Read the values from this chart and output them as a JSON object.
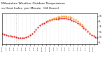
{
  "title_line1": "Milwaukee Weather Outdoor Temperature",
  "title_line2": "vs Heat Index  per Minute  (24 Hours)",
  "title_fontsize": 3.2,
  "bg_color": "#ffffff",
  "line1_color": "#dd0000",
  "line2_color": "#ff8800",
  "ylim": [
    38,
    96
  ],
  "xlim": [
    0,
    1440
  ],
  "yticks": [
    41,
    51,
    61,
    71,
    81,
    91
  ],
  "ytick_labels": [
    "41",
    "51",
    "61",
    "71",
    "81",
    "91"
  ],
  "x_ticks": [
    0,
    60,
    120,
    180,
    240,
    300,
    360,
    420,
    480,
    540,
    600,
    660,
    720,
    780,
    840,
    900,
    960,
    1020,
    1080,
    1140,
    1200,
    1260,
    1320,
    1380
  ],
  "x_tick_labels_row1": [
    "01",
    "",
    "",
    "",
    "",
    "",
    "",
    "",
    "",
    "",
    "",
    "",
    "",
    "",
    "",
    "",
    "",
    "",
    "",
    "",
    "",
    "",
    "",
    ""
  ],
  "x_tick_labels_row2": [
    "12:00a",
    "1:00a",
    "2:00a",
    "3:00a",
    "4:00a",
    "5:00a",
    "6:00a",
    "7:00a",
    "8:00a",
    "9:00a",
    "10:00a",
    "11:00a",
    "12:00p",
    "1:00p",
    "2:00p",
    "3:00p",
    "4:00p",
    "5:00p",
    "6:00p",
    "7:00p",
    "8:00p",
    "9:00p",
    "10:00p",
    "11:00p"
  ],
  "temp_x": [
    0,
    30,
    60,
    90,
    120,
    150,
    180,
    210,
    240,
    270,
    300,
    330,
    360,
    390,
    420,
    450,
    480,
    510,
    540,
    570,
    600,
    630,
    660,
    690,
    720,
    750,
    780,
    810,
    840,
    870,
    900,
    930,
    960,
    990,
    1020,
    1050,
    1080,
    1110,
    1140,
    1170,
    1200,
    1230,
    1260,
    1290,
    1320,
    1350,
    1380,
    1410,
    1440
  ],
  "temp_y": [
    57,
    56,
    55,
    54,
    53,
    52,
    52,
    51,
    50,
    50,
    50,
    50,
    51,
    52,
    55,
    58,
    62,
    66,
    70,
    73,
    76,
    78,
    80,
    82,
    83,
    84,
    85,
    86,
    86,
    87,
    87,
    87,
    87,
    86,
    85,
    83,
    82,
    80,
    78,
    75,
    72,
    68,
    65,
    61,
    58,
    55,
    53,
    51,
    50
  ],
  "heat_x": [
    690,
    720,
    750,
    780,
    810,
    840,
    870,
    900,
    930,
    960,
    990,
    1020,
    1050,
    1080,
    1110,
    1140,
    1170,
    1200,
    1230,
    1260,
    1290,
    1320
  ],
  "heat_y": [
    82,
    84,
    86,
    87,
    88,
    89,
    90,
    91,
    91,
    91,
    90,
    89,
    88,
    86,
    84,
    81,
    78,
    75,
    71,
    67,
    63,
    59
  ],
  "vline_x": 210,
  "vline_color": "#aaaaaa",
  "grid_color": "#cccccc",
  "dot_size": 1.2,
  "heat_dot_size": 1.2
}
